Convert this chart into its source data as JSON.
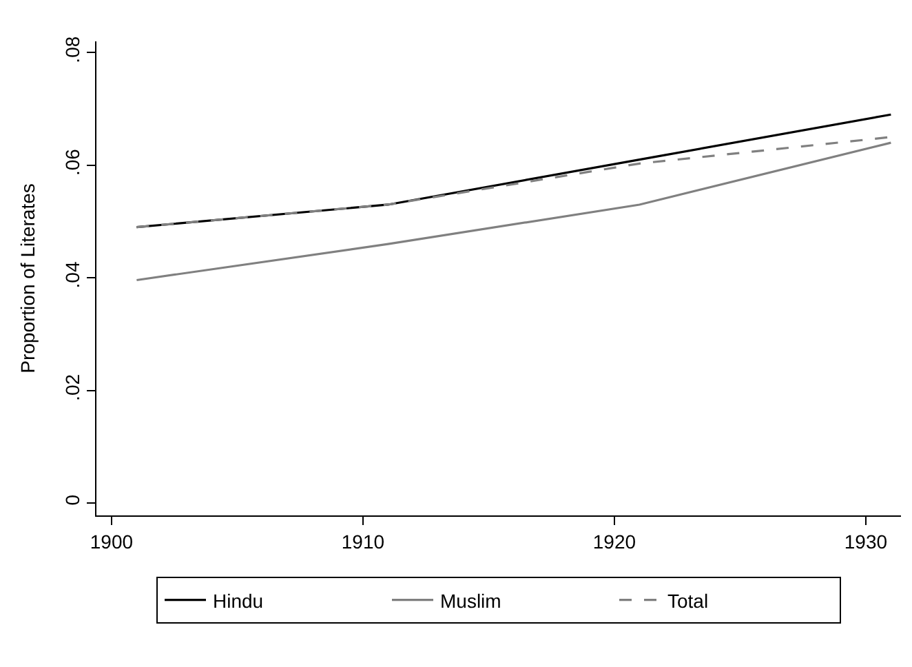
{
  "chart_data": {
    "type": "line",
    "ylabel": "Proportion of Literates",
    "x": [
      1901,
      1911,
      1921,
      1931
    ],
    "series": [
      {
        "name": "Hindu",
        "color": "#000000",
        "line_style": "solid",
        "values": [
          0.049,
          0.053,
          0.061,
          0.069
        ]
      },
      {
        "name": "Muslim",
        "color": "#808080",
        "line_style": "solid",
        "values": [
          0.0396,
          0.046,
          0.053,
          0.064
        ]
      },
      {
        "name": "Total",
        "color": "#808080",
        "line_style": "dashed",
        "values": [
          0.049,
          0.053,
          0.0603,
          0.065
        ]
      }
    ],
    "xlim": [
      1899.4,
      1931.4
    ],
    "xticks": [
      1900,
      1910,
      1920,
      1930
    ],
    "ylim": [
      -0.0022,
      0.082
    ],
    "yticks": [
      {
        "value": 0,
        "label": "0"
      },
      {
        "value": 0.02,
        "label": ".02"
      },
      {
        "value": 0.04,
        "label": ".04"
      },
      {
        "value": 0.06,
        "label": ".06"
      },
      {
        "value": 0.08,
        "label": ".08"
      }
    ],
    "legend": "bottom",
    "marker": "none"
  }
}
